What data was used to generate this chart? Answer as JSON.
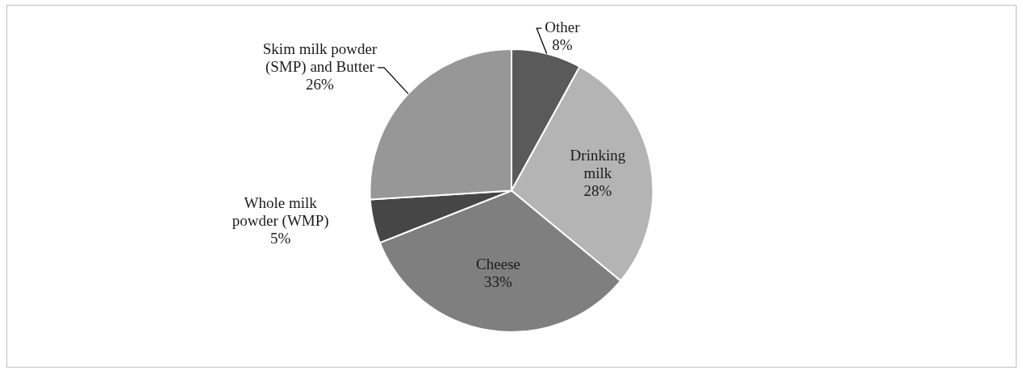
{
  "chart_data": {
    "type": "pie",
    "categories": [
      "Other",
      "Drinking milk",
      "Cheese",
      "Whole milk powder (WMP)",
      "Skim milk powder (SMP) and Butter"
    ],
    "values": [
      8,
      28,
      33,
      5,
      26
    ],
    "colors": [
      "#5a5a5a",
      "#b4b4b4",
      "#7f7f7f",
      "#464646",
      "#979797"
    ],
    "value_labels": [
      "8%",
      "28%",
      "33%",
      "5%",
      "26%"
    ],
    "legend": false
  }
}
